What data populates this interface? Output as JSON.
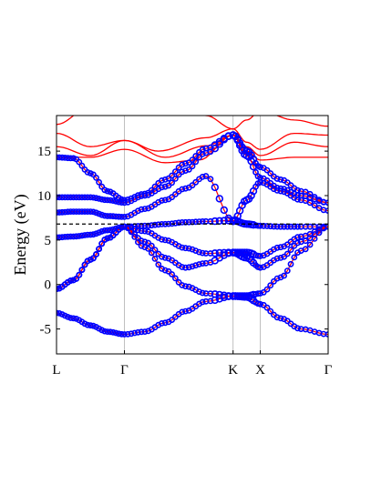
{
  "chart_data": {
    "type": "line",
    "title": "",
    "xlabel": "",
    "ylabel": "Energy (eV)",
    "ylim": [
      -7.8,
      19
    ],
    "x_ticks": [
      {
        "label": "L",
        "x": 0
      },
      {
        "label": "Γ",
        "x": 1
      },
      {
        "label": "K",
        "x": 2.6
      },
      {
        "label": "X",
        "x": 3.0
      },
      {
        "label": "Γ",
        "x": 4.0
      }
    ],
    "xlim": [
      0,
      4.0
    ],
    "y_ticks": [
      -5,
      0,
      5,
      10,
      15
    ],
    "fermi_level": 6.8,
    "grid": "vertical lines at high-symmetry points",
    "colors": {
      "band_line": "#ff0000",
      "marker": "#0000ff",
      "fermi_line": "#000000"
    },
    "series_red": [
      {
        "x": [
          0,
          0.5,
          1.0,
          1.6,
          2.2,
          2.6,
          2.8,
          3.0,
          3.5,
          4.0
        ],
        "y": [
          18.0,
          20.0,
          19.5,
          21.0,
          19.0,
          17.5,
          18.5,
          19.5,
          18.5,
          17.8
        ]
      },
      {
        "x": [
          0,
          0.5,
          1.0,
          1.5,
          2.2,
          2.6,
          2.8,
          3.0,
          3.5,
          4.0
        ],
        "y": [
          17.0,
          15.5,
          16.2,
          15.0,
          16.5,
          17.5,
          16.0,
          15.2,
          17.0,
          16.8
        ]
      },
      {
        "x": [
          0,
          0.5,
          1.0,
          1.6,
          2.2,
          2.6,
          2.8,
          3.0,
          3.5,
          4.0
        ],
        "y": [
          15.5,
          14.5,
          16.2,
          14.3,
          15.6,
          16.8,
          15.5,
          14.5,
          16.0,
          15.5
        ]
      },
      {
        "x": [
          0,
          0.5,
          1.0,
          1.6,
          2.1,
          2.6,
          2.8,
          3.0,
          3.5,
          4.0
        ],
        "y": [
          14.3,
          14.3,
          15.2,
          13.7,
          14.0,
          16.8,
          15.0,
          14.0,
          14.3,
          14.3
        ]
      }
    ],
    "series_bands": [
      {
        "x": [
          0,
          0.25,
          0.5,
          0.75,
          1.0,
          1.3,
          1.6,
          1.9,
          2.2,
          2.6,
          2.8,
          3.0,
          3.3,
          3.6,
          4.0
        ],
        "y": [
          14.3,
          14.2,
          12.5,
          10.5,
          9.5,
          10.2,
          11.8,
          13.6,
          15.3,
          16.8,
          15.0,
          13.2,
          11.8,
          10.5,
          9.2
        ]
      },
      {
        "x": [
          0,
          0.25,
          0.5,
          0.75,
          1.0,
          1.3,
          1.6,
          1.9,
          2.2,
          2.6,
          2.8,
          3.0,
          3.3,
          3.6,
          4.0
        ],
        "y": [
          9.8,
          9.8,
          9.8,
          9.5,
          9.2,
          10.0,
          11.0,
          12.8,
          14.8,
          16.8,
          14.5,
          12.0,
          10.8,
          10.0,
          9.2
        ]
      },
      {
        "x": [
          0,
          0.25,
          0.5,
          0.75,
          1.0,
          1.3,
          1.6,
          1.9,
          2.2,
          2.6,
          2.8,
          3.0,
          3.3,
          3.6,
          4.0
        ],
        "y": [
          8.1,
          8.2,
          8.2,
          7.7,
          7.6,
          8.5,
          9.5,
          10.8,
          12.2,
          7.1,
          9.5,
          11.5,
          10.5,
          9.5,
          8.3
        ]
      },
      {
        "x": [
          0,
          0.25,
          0.5,
          0.75,
          1.0,
          1.3,
          1.6,
          1.9,
          2.2,
          2.6,
          2.8,
          3.0,
          3.3,
          3.6,
          4.0
        ],
        "y": [
          5.3,
          5.4,
          5.6,
          6.1,
          6.5,
          6.6,
          6.8,
          7.0,
          7.1,
          7.2,
          6.8,
          6.6,
          6.5,
          6.5,
          6.5
        ]
      },
      {
        "x": [
          0,
          0.25,
          0.5,
          0.75,
          1.0,
          1.3,
          1.6,
          1.9,
          2.2,
          2.6,
          2.8,
          3.0,
          3.3,
          3.6,
          4.0
        ],
        "y": [
          -0.5,
          0.5,
          2.8,
          5.2,
          6.5,
          6.0,
          5.0,
          4.1,
          3.5,
          3.6,
          3.6,
          3.2,
          4.2,
          5.4,
          6.5
        ]
      },
      {
        "x": [
          0,
          0.25,
          0.5,
          0.75,
          1.0,
          1.3,
          1.6,
          1.9,
          2.2,
          2.6,
          2.8,
          3.0,
          3.3,
          3.6,
          4.0
        ],
        "y": [
          -0.5,
          0.5,
          2.8,
          5.2,
          6.5,
          4.8,
          3.0,
          1.9,
          2.4,
          3.6,
          3.0,
          1.9,
          3.0,
          4.8,
          6.5
        ]
      },
      {
        "x": [
          0,
          0.25,
          0.5,
          0.75,
          1.0,
          1.3,
          1.6,
          1.9,
          2.2,
          2.6,
          2.8,
          3.0,
          3.3,
          3.6,
          4.0
        ],
        "y": [
          -0.5,
          0.5,
          2.8,
          5.2,
          6.5,
          4.2,
          1.6,
          -0.2,
          -1.0,
          -1.3,
          -1.3,
          -1.0,
          0.8,
          3.8,
          6.5
        ]
      },
      {
        "x": [
          0,
          0.25,
          0.5,
          0.75,
          1.0,
          1.3,
          1.6,
          1.9,
          2.2,
          2.6,
          2.8,
          3.0,
          3.3,
          3.6,
          4.0
        ],
        "y": [
          -3.2,
          -3.8,
          -4.6,
          -5.3,
          -5.6,
          -5.3,
          -4.3,
          -3.0,
          -1.9,
          -1.3,
          -1.4,
          -2.2,
          -3.8,
          -5.0,
          -5.6
        ]
      }
    ]
  }
}
